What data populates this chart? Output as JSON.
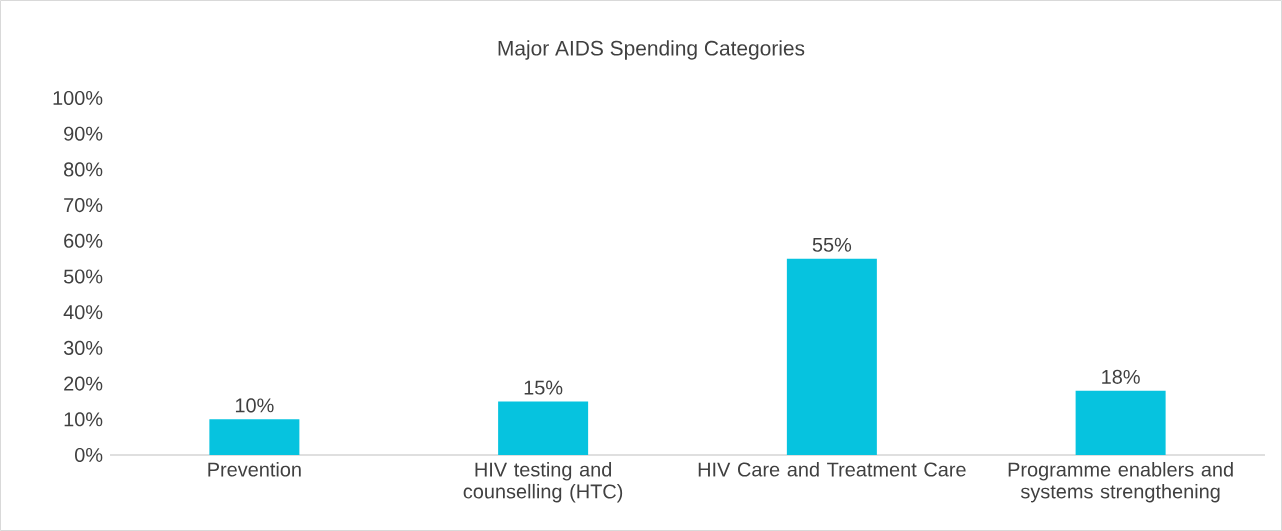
{
  "chart_data": {
    "type": "bar",
    "title": "Major AIDS Spending Categories",
    "categories": [
      "Prevention",
      "HIV testing and counselling (HTC)",
      "HIV Care and Treatment Care",
      "Programme enablers and systems strengthening"
    ],
    "values": [
      10,
      15,
      55,
      18
    ],
    "value_labels": [
      "10%",
      "15%",
      "55%",
      "18%"
    ],
    "color": "#06c3df",
    "ylim": [
      0,
      100
    ],
    "yticks": [
      {
        "value": 0,
        "label": "0%"
      },
      {
        "value": 10,
        "label": "10%"
      },
      {
        "value": 20,
        "label": "20%"
      },
      {
        "value": 30,
        "label": "30%"
      },
      {
        "value": 40,
        "label": "40%"
      },
      {
        "value": 50,
        "label": "50%"
      },
      {
        "value": 60,
        "label": "60%"
      },
      {
        "value": 70,
        "label": "70%"
      },
      {
        "value": 80,
        "label": "80%"
      },
      {
        "value": 90,
        "label": "90%"
      },
      {
        "value": 100,
        "label": "100%"
      }
    ],
    "grid": false
  }
}
